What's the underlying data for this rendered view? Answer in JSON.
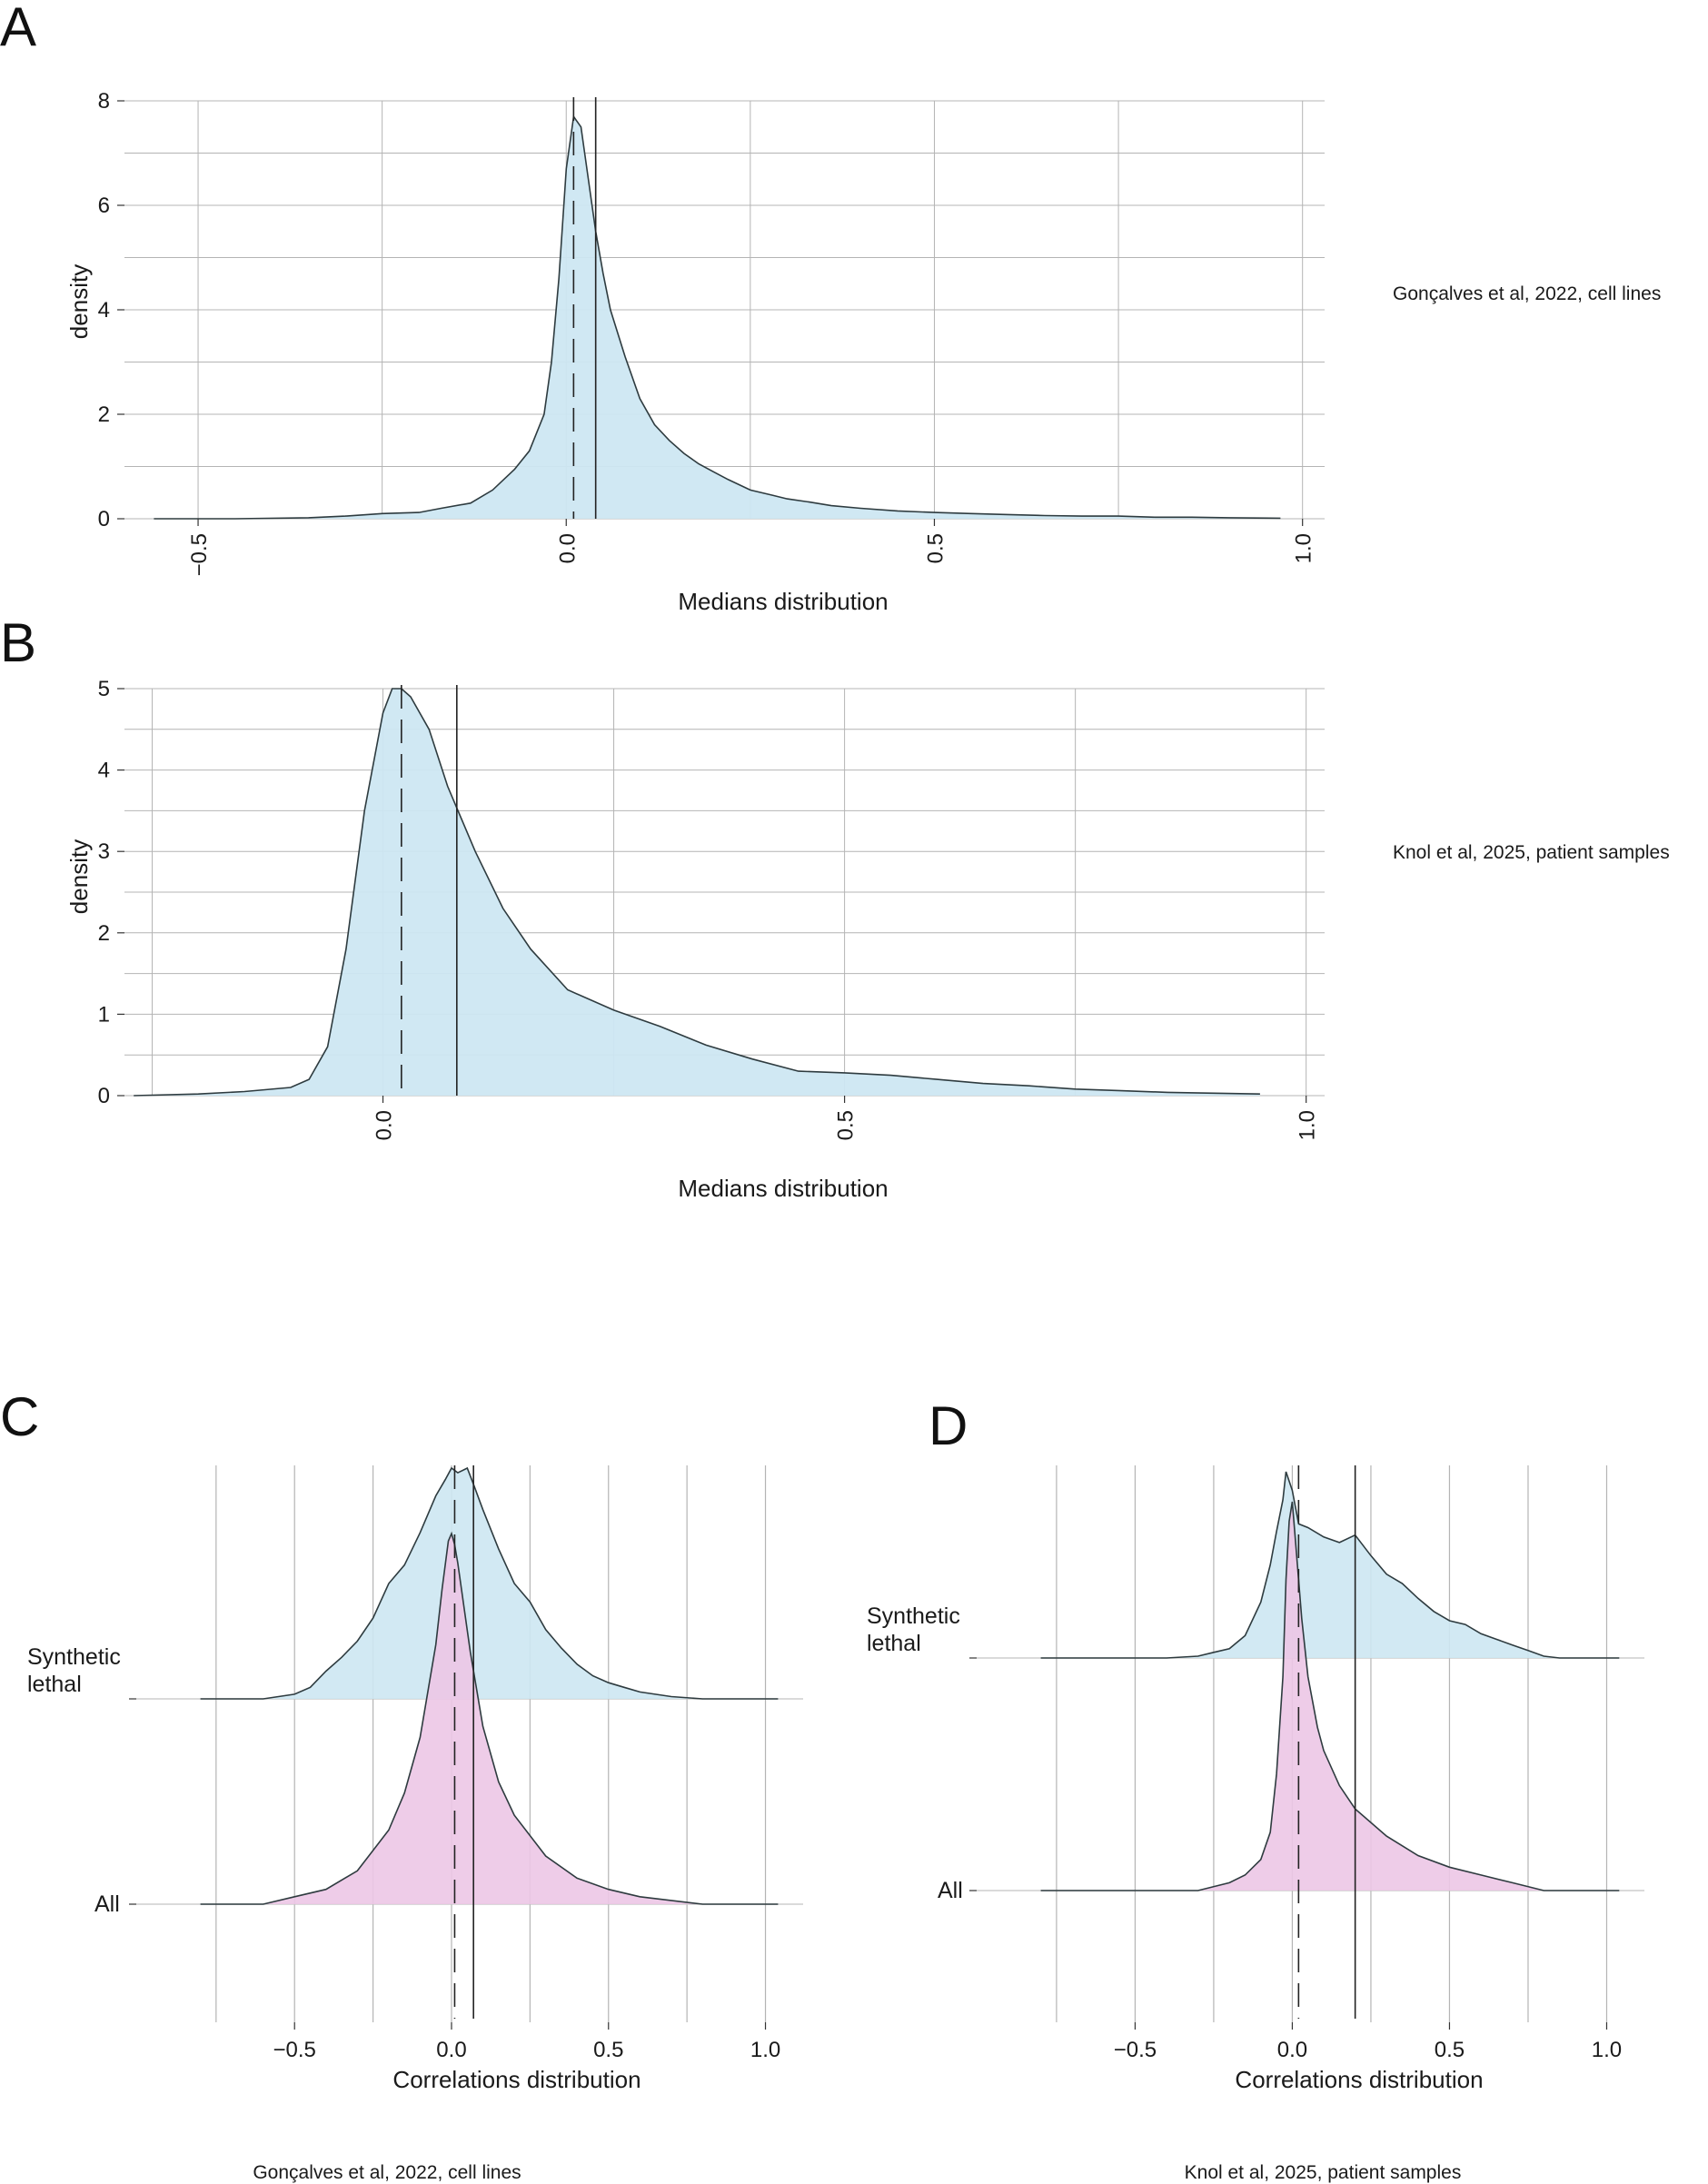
{
  "panel_labels": [
    "A",
    "B",
    "C",
    "D"
  ],
  "colors": {
    "synthetic_lethal_fill": "#cde7f2",
    "all_fill": "#ecc6e6",
    "outline": "#2e3b3f",
    "grid": "#b4b4b4"
  },
  "chart_data": [
    {
      "panel": "A",
      "type": "area",
      "xlabel": "Medians distribution",
      "ylabel": "density",
      "side_label": "Gonçalves et al, 2022, cell lines",
      "xlim": [
        -0.6,
        1.03
      ],
      "ylim": [
        0,
        8
      ],
      "xticks": [
        -0.5,
        0.0,
        0.5,
        1.0
      ],
      "xtick_labels": [
        "−0.5",
        "0.0",
        "0.5",
        "1.0"
      ],
      "yticks": [
        0,
        2,
        4,
        6,
        8
      ],
      "ytick_labels": [
        "0",
        "2",
        "4",
        "6",
        "8"
      ],
      "median_dashed": 0.01,
      "mean_solid": 0.04,
      "grid": true,
      "x": [
        -0.56,
        -0.45,
        -0.35,
        -0.3,
        -0.25,
        -0.2,
        -0.17,
        -0.13,
        -0.1,
        -0.07,
        -0.05,
        -0.03,
        -0.02,
        -0.01,
        0.0,
        0.01,
        0.02,
        0.03,
        0.04,
        0.05,
        0.06,
        0.08,
        0.1,
        0.12,
        0.14,
        0.16,
        0.18,
        0.2,
        0.22,
        0.25,
        0.28,
        0.3,
        0.33,
        0.36,
        0.4,
        0.45,
        0.5,
        0.55,
        0.6,
        0.65,
        0.7,
        0.75,
        0.8,
        0.85,
        0.9,
        0.97
      ],
      "y": [
        0.0,
        0.0,
        0.02,
        0.05,
        0.1,
        0.12,
        0.2,
        0.3,
        0.55,
        0.95,
        1.3,
        2.0,
        3.0,
        4.6,
        6.7,
        7.7,
        7.5,
        6.5,
        5.5,
        4.7,
        4.0,
        3.1,
        2.3,
        1.8,
        1.5,
        1.25,
        1.05,
        0.9,
        0.75,
        0.55,
        0.45,
        0.38,
        0.32,
        0.25,
        0.2,
        0.15,
        0.12,
        0.1,
        0.08,
        0.06,
        0.05,
        0.05,
        0.03,
        0.03,
        0.02,
        0.01
      ]
    },
    {
      "panel": "B",
      "type": "area",
      "xlabel": "Medians distribution",
      "ylabel": "density",
      "side_label": "Knol et al, 2025, patient samples",
      "xlim": [
        -0.28,
        1.02
      ],
      "ylim": [
        0,
        5
      ],
      "xticks": [
        0.0,
        0.5,
        1.0
      ],
      "xtick_labels": [
        "0.0",
        "0.5",
        "1.0"
      ],
      "yticks": [
        0,
        1,
        2,
        3,
        4,
        5
      ],
      "ytick_labels": [
        "0",
        "1",
        "2",
        "3",
        "4",
        "5"
      ],
      "median_dashed": 0.02,
      "mean_solid": 0.08,
      "grid": true,
      "x": [
        -0.27,
        -0.2,
        -0.15,
        -0.1,
        -0.08,
        -0.06,
        -0.04,
        -0.02,
        0.0,
        0.01,
        0.02,
        0.03,
        0.05,
        0.07,
        0.1,
        0.13,
        0.16,
        0.2,
        0.25,
        0.3,
        0.35,
        0.4,
        0.45,
        0.5,
        0.55,
        0.6,
        0.65,
        0.7,
        0.75,
        0.8,
        0.85,
        0.9,
        0.95
      ],
      "y": [
        0.0,
        0.02,
        0.05,
        0.1,
        0.2,
        0.6,
        1.8,
        3.5,
        4.7,
        5.0,
        5.0,
        4.9,
        4.5,
        3.8,
        3.0,
        2.3,
        1.8,
        1.3,
        1.05,
        0.85,
        0.62,
        0.45,
        0.3,
        0.28,
        0.25,
        0.2,
        0.15,
        0.12,
        0.08,
        0.06,
        0.04,
        0.03,
        0.02
      ]
    },
    {
      "panel": "C",
      "type": "area",
      "xlabel": "Correlations distribution",
      "caption": "Gonçalves et al, 2022, cell lines",
      "xlim": [
        -0.9,
        1.12
      ],
      "xticks": [
        -0.5,
        0.0,
        0.5,
        1.0
      ],
      "xtick_labels": [
        "−0.5",
        "0.0",
        "0.5",
        "1.0"
      ],
      "grid": true,
      "median_dashed": 0.01,
      "mean_solid": 0.07,
      "series": [
        {
          "name": "Synthetic lethal",
          "label_lines": [
            "Synthetic",
            "lethal"
          ],
          "fill": "#cde7f2",
          "x": [
            -0.8,
            -0.6,
            -0.5,
            -0.45,
            -0.4,
            -0.35,
            -0.3,
            -0.25,
            -0.2,
            -0.15,
            -0.1,
            -0.05,
            -0.02,
            0.0,
            0.02,
            0.05,
            0.07,
            0.1,
            0.15,
            0.2,
            0.25,
            0.3,
            0.35,
            0.4,
            0.45,
            0.5,
            0.55,
            0.6,
            0.7,
            0.8,
            1.04
          ],
          "y": [
            0.0,
            0.0,
            0.02,
            0.05,
            0.12,
            0.18,
            0.25,
            0.35,
            0.5,
            0.58,
            0.72,
            0.88,
            0.95,
            1.0,
            0.98,
            1.0,
            0.93,
            0.82,
            0.65,
            0.5,
            0.42,
            0.3,
            0.22,
            0.15,
            0.1,
            0.07,
            0.05,
            0.03,
            0.01,
            0.0,
            0.0
          ]
        },
        {
          "name": "All",
          "label_lines": [
            "All"
          ],
          "fill": "#ecc6e6",
          "x": [
            -0.8,
            -0.6,
            -0.5,
            -0.4,
            -0.3,
            -0.2,
            -0.15,
            -0.1,
            -0.05,
            -0.03,
            -0.01,
            0.0,
            0.01,
            0.02,
            0.04,
            0.06,
            0.08,
            0.1,
            0.15,
            0.2,
            0.3,
            0.4,
            0.5,
            0.6,
            0.8,
            1.04
          ],
          "y": [
            0.0,
            0.0,
            0.02,
            0.04,
            0.09,
            0.2,
            0.3,
            0.45,
            0.7,
            0.85,
            0.98,
            1.0,
            0.97,
            0.92,
            0.8,
            0.68,
            0.58,
            0.48,
            0.33,
            0.24,
            0.13,
            0.07,
            0.04,
            0.02,
            0.0,
            0.0
          ]
        }
      ]
    },
    {
      "panel": "D",
      "type": "area",
      "xlabel": "Correlations distribution",
      "caption": "Knol et al, 2025, patient samples",
      "xlim": [
        -0.9,
        1.12
      ],
      "xticks": [
        -0.5,
        0.0,
        0.5,
        1.0
      ],
      "xtick_labels": [
        "−0.5",
        "0.0",
        "0.5",
        "1.0"
      ],
      "grid": true,
      "median_dashed": 0.02,
      "mean_solid": 0.2,
      "series": [
        {
          "name": "Synthetic lethal",
          "label_lines": [
            "Synthetic",
            "lethal"
          ],
          "fill": "#cde7f2",
          "x": [
            -0.8,
            -0.4,
            -0.3,
            -0.25,
            -0.2,
            -0.15,
            -0.1,
            -0.07,
            -0.05,
            -0.03,
            -0.02,
            0.0,
            0.02,
            0.05,
            0.1,
            0.15,
            0.2,
            0.25,
            0.3,
            0.35,
            0.4,
            0.45,
            0.5,
            0.55,
            0.6,
            0.65,
            0.7,
            0.75,
            0.8,
            0.85,
            1.04
          ],
          "y": [
            0.0,
            0.0,
            0.01,
            0.03,
            0.05,
            0.12,
            0.3,
            0.5,
            0.68,
            0.85,
            1.0,
            0.9,
            0.72,
            0.7,
            0.65,
            0.62,
            0.66,
            0.55,
            0.45,
            0.4,
            0.32,
            0.25,
            0.2,
            0.18,
            0.13,
            0.1,
            0.07,
            0.04,
            0.01,
            0.0,
            0.0
          ]
        },
        {
          "name": "All",
          "label_lines": [
            "All"
          ],
          "fill": "#ecc6e6",
          "x": [
            -0.8,
            -0.3,
            -0.2,
            -0.15,
            -0.1,
            -0.07,
            -0.05,
            -0.03,
            -0.02,
            -0.01,
            0.0,
            0.01,
            0.03,
            0.05,
            0.08,
            0.1,
            0.15,
            0.2,
            0.3,
            0.4,
            0.5,
            0.6,
            0.7,
            0.8,
            1.04
          ],
          "y": [
            0.0,
            0.0,
            0.02,
            0.04,
            0.08,
            0.15,
            0.3,
            0.55,
            0.8,
            0.95,
            1.0,
            0.9,
            0.7,
            0.55,
            0.42,
            0.36,
            0.27,
            0.21,
            0.14,
            0.09,
            0.06,
            0.04,
            0.02,
            0.0,
            0.0
          ]
        }
      ]
    }
  ]
}
